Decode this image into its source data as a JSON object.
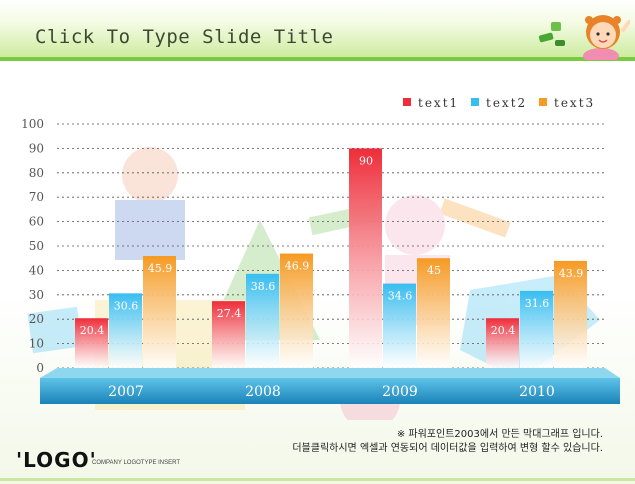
{
  "slide": {
    "title": "Click To Type Slide Title",
    "logo_text": "'LOGO'",
    "logo_subtext": "COMPANY LOGOTYPE INSERT",
    "note_line_1": "※ 파워포인트2003에서 만든 막대그래프 입니다.",
    "note_line_2": "더블클릭하시면 엑셀과 연동되어 데이터값을 입력하여 변형 할수 있습니다."
  },
  "chart_data": {
    "type": "bar",
    "title": "",
    "xlabel": "",
    "ylabel": "",
    "categories": [
      "2007",
      "2008",
      "2009",
      "2010"
    ],
    "series": [
      {
        "name": "text1",
        "values": [
          20.4,
          27.4,
          90,
          20.4
        ],
        "color": "#ee2d3a"
      },
      {
        "name": "text2",
        "values": [
          30.6,
          38.6,
          34.6,
          31.6
        ],
        "color": "#38bdf0"
      },
      {
        "name": "text3",
        "values": [
          45.9,
          46.9,
          45,
          43.9
        ],
        "color": "#f59a23"
      }
    ],
    "ylim": [
      0,
      100
    ],
    "yticks": [
      "0",
      "10",
      "20",
      "30",
      "40",
      "50",
      "60",
      "70",
      "80",
      "90",
      "100"
    ],
    "data_labels": [
      [
        "20.4",
        "27.4",
        "90",
        "20.4"
      ],
      [
        "30.6",
        "38.6",
        "34.6",
        "31.6"
      ],
      [
        "45.9",
        "46.9",
        "45",
        "43.9"
      ]
    ],
    "grid": true,
    "legend_position": "top-right"
  }
}
